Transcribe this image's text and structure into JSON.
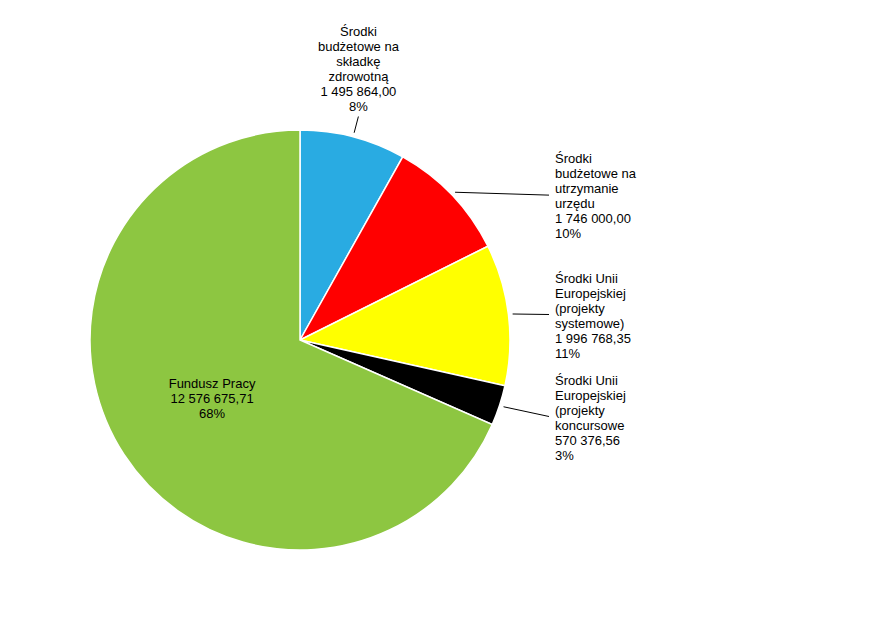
{
  "chart_data": {
    "type": "pie",
    "categories": [
      "Środki\nbudżetowe na\nskładkę\nzdrowotną",
      "Środki\nbudżetowe na\nutrzymanie\nurzędu",
      "Środki Unii\nEuropejskiej\n(projekty\nsystemowe)",
      "Środki Unii\nEuropejskiej\n(projekty\nkoncursowe",
      "Fundusz Pracy"
    ],
    "values": [
      1495864.0,
      1746000.0,
      1996768.35,
      570376.56,
      12576675.71
    ],
    "value_labels": [
      "1 495 864,00",
      "1 746 000,00",
      "1 996 768,35",
      "570 376,56",
      "12 576 675,71"
    ],
    "percentages": [
      8,
      10,
      11,
      3,
      68
    ],
    "percentage_labels": [
      "8%",
      "10%",
      "11%",
      "3%",
      "68%"
    ],
    "colors": [
      "#29ABE2",
      "#FF0000",
      "#FFFF00",
      "#000000",
      "#8DC641"
    ]
  }
}
